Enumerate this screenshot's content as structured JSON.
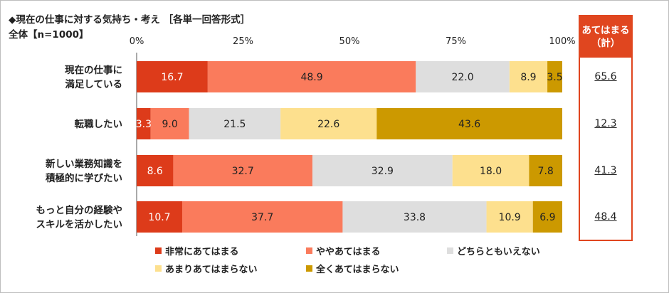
{
  "title": "◆現在の仕事に対する気持ち・考え ［各単一回答形式］",
  "subtitle": "全体【n=1000】",
  "summary": {
    "header_line1": "あてはまる",
    "header_line2": "（計）",
    "values": [
      "65.6",
      "12.3",
      "41.3",
      "48.4"
    ]
  },
  "chart_data": {
    "type": "bar",
    "orientation": "horizontal",
    "stacked": true,
    "xlim": [
      0,
      100
    ],
    "xticks": [
      "0%",
      "25%",
      "50%",
      "75%",
      "100%"
    ],
    "categories": [
      [
        "現在の仕事に",
        "満足している"
      ],
      [
        "転職したい"
      ],
      [
        "新しい業務知識を",
        "積極的に学びたい"
      ],
      [
        "もっと自分の経験や",
        "スキルを活かしたい"
      ]
    ],
    "series": [
      {
        "name": "非常にあてはまる",
        "color": "#dd3b1a",
        "label_color": "#ffffff",
        "values": [
          16.7,
          3.3,
          8.6,
          10.7
        ]
      },
      {
        "name": "ややあてはまる",
        "color": "#fa7b5c",
        "label_color": "#222222",
        "values": [
          48.9,
          9.0,
          32.7,
          37.7
        ]
      },
      {
        "name": "どちらともいえない",
        "color": "#dedede",
        "label_color": "#222222",
        "values": [
          22.0,
          21.5,
          32.9,
          33.8
        ]
      },
      {
        "name": "あまりあてはまらない",
        "color": "#fde08e",
        "label_color": "#222222",
        "values": [
          8.9,
          22.6,
          18.0,
          10.9
        ]
      },
      {
        "name": "全くあてはまらない",
        "color": "#cc9900",
        "label_color": "#222222",
        "values": [
          3.5,
          43.6,
          7.8,
          6.9
        ]
      }
    ]
  }
}
